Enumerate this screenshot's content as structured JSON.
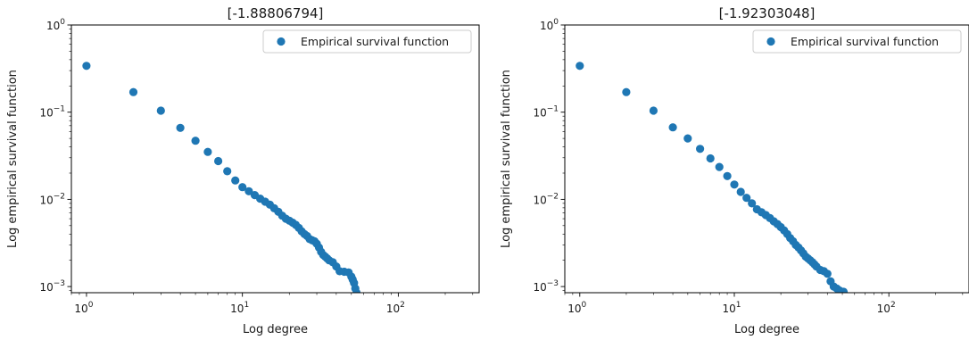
{
  "chart_data": [
    {
      "type": "scatter",
      "title": "[-1.88806794]",
      "xlabel": "Log degree",
      "ylabel": "Log empirical survival function",
      "xscale": "log",
      "yscale": "log",
      "xlim": [
        0.8,
        330
      ],
      "ylim": [
        0.00085,
        1.0
      ],
      "xticks": [
        {
          "v": 1,
          "label": "10",
          "exp": "0"
        },
        {
          "v": 10,
          "label": "10",
          "exp": "1"
        },
        {
          "v": 100,
          "label": "10",
          "exp": "2"
        }
      ],
      "yticks": [
        {
          "v": 1,
          "label": "10",
          "exp": "0"
        },
        {
          "v": 0.1,
          "label": "10",
          "exp": "−1"
        },
        {
          "v": 0.01,
          "label": "10",
          "exp": "−2"
        },
        {
          "v": 0.001,
          "label": "10",
          "exp": "−3"
        }
      ],
      "legend": {
        "position": "top-right",
        "entries": [
          {
            "label": "Empirical survival function",
            "color": "#1f77b4"
          }
        ]
      },
      "grid": false,
      "series": [
        {
          "color": "#1f77b4",
          "points": [
            [
              1,
              0.34
            ],
            [
              2,
              0.17
            ],
            [
              3,
              0.104
            ],
            [
              4,
              0.066
            ],
            [
              5,
              0.047
            ],
            [
              6,
              0.035
            ],
            [
              7,
              0.0275
            ],
            [
              8,
              0.021
            ],
            [
              9,
              0.0165
            ],
            [
              10,
              0.0138
            ],
            [
              11,
              0.0124
            ],
            [
              12,
              0.0112
            ],
            [
              13,
              0.0102
            ],
            [
              14,
              0.0094
            ],
            [
              15,
              0.0087
            ],
            [
              16,
              0.0079
            ],
            [
              17,
              0.0072
            ],
            [
              18,
              0.0065
            ],
            [
              19,
              0.006
            ],
            [
              20,
              0.0057
            ],
            [
              21,
              0.0054
            ],
            [
              22,
              0.0051
            ],
            [
              23,
              0.0047
            ],
            [
              24,
              0.0043
            ],
            [
              25,
              0.004
            ],
            [
              26,
              0.0038
            ],
            [
              27,
              0.0035
            ],
            [
              28,
              0.0034
            ],
            [
              29,
              0.0033
            ],
            [
              30,
              0.0031
            ],
            [
              31,
              0.0028
            ],
            [
              32,
              0.0025
            ],
            [
              33,
              0.0023
            ],
            [
              34,
              0.0022
            ],
            [
              35,
              0.0021
            ],
            [
              36,
              0.002
            ],
            [
              38,
              0.0019
            ],
            [
              40,
              0.0017
            ],
            [
              42,
              0.0015
            ],
            [
              45,
              0.00148
            ],
            [
              48,
              0.00145
            ],
            [
              50,
              0.0013
            ],
            [
              51,
              0.0012
            ],
            [
              52,
              0.0011
            ],
            [
              53,
              0.00095
            ],
            [
              54,
              0.00085
            ]
          ]
        }
      ]
    },
    {
      "type": "scatter",
      "title": "[-1.92303048]",
      "xlabel": "Log degree",
      "ylabel": "Log empirical survival function",
      "xscale": "log",
      "yscale": "log",
      "xlim": [
        0.8,
        330
      ],
      "ylim": [
        0.00085,
        1.0
      ],
      "xticks": [
        {
          "v": 1,
          "label": "10",
          "exp": "0"
        },
        {
          "v": 10,
          "label": "10",
          "exp": "1"
        },
        {
          "v": 100,
          "label": "10",
          "exp": "2"
        }
      ],
      "yticks": [
        {
          "v": 1,
          "label": "10",
          "exp": "0"
        },
        {
          "v": 0.1,
          "label": "10",
          "exp": "−1"
        },
        {
          "v": 0.01,
          "label": "10",
          "exp": "−2"
        },
        {
          "v": 0.001,
          "label": "10",
          "exp": "−3"
        }
      ],
      "legend": {
        "position": "top-right",
        "entries": [
          {
            "label": "Empirical survival function",
            "color": "#1f77b4"
          }
        ]
      },
      "grid": false,
      "series": [
        {
          "color": "#1f77b4",
          "points": [
            [
              1,
              0.34
            ],
            [
              2,
              0.17
            ],
            [
              3,
              0.104
            ],
            [
              4,
              0.067
            ],
            [
              5,
              0.05
            ],
            [
              6,
              0.038
            ],
            [
              7,
              0.0295
            ],
            [
              8,
              0.0235
            ],
            [
              9,
              0.0185
            ],
            [
              10,
              0.0148
            ],
            [
              11,
              0.0122
            ],
            [
              12,
              0.0104
            ],
            [
              13,
              0.009
            ],
            [
              14,
              0.0077
            ],
            [
              15,
              0.0071
            ],
            [
              16,
              0.0066
            ],
            [
              17,
              0.0061
            ],
            [
              18,
              0.0056
            ],
            [
              19,
              0.0052
            ],
            [
              20,
              0.0048
            ],
            [
              21,
              0.0044
            ],
            [
              22,
              0.004
            ],
            [
              23,
              0.0036
            ],
            [
              24,
              0.0033
            ],
            [
              25,
              0.003
            ],
            [
              26,
              0.0028
            ],
            [
              27,
              0.0026
            ],
            [
              28,
              0.0024
            ],
            [
              29,
              0.0022
            ],
            [
              30,
              0.0021
            ],
            [
              31,
              0.002
            ],
            [
              32,
              0.0019
            ],
            [
              33,
              0.0018
            ],
            [
              34,
              0.0017
            ],
            [
              36,
              0.00155
            ],
            [
              38,
              0.0015
            ],
            [
              40,
              0.0014
            ],
            [
              42,
              0.00115
            ],
            [
              44,
              0.001
            ],
            [
              46,
              0.00095
            ],
            [
              48,
              0.0009
            ],
            [
              51,
              0.00087
            ]
          ]
        }
      ]
    }
  ]
}
